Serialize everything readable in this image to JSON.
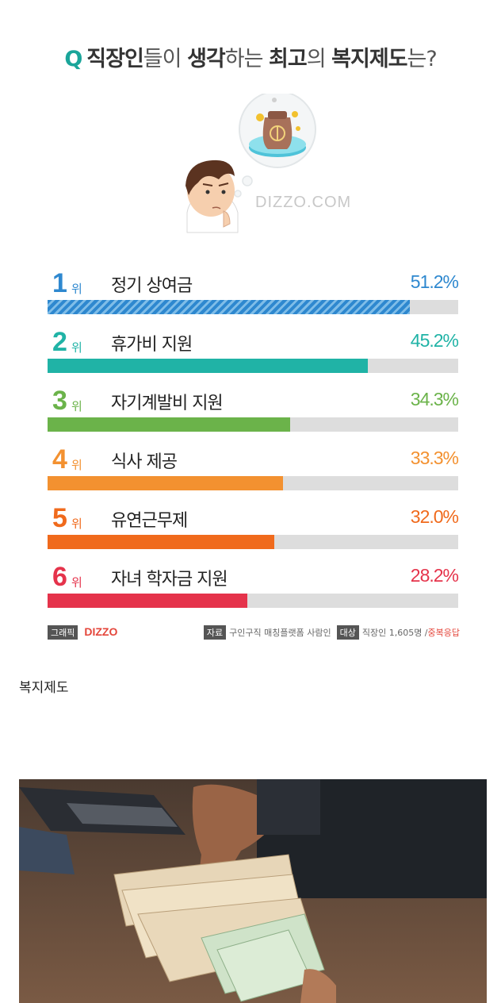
{
  "title": {
    "q": "Q",
    "part1": "직장인",
    "part2": "들이 ",
    "part3": "생각",
    "part4": "하는 ",
    "part5": "최고",
    "part6": "의 ",
    "part7": "복지제도",
    "part8": "는?"
  },
  "watermark": "DIZZO.COM",
  "rank_unit": "위",
  "chart_data": {
    "type": "bar",
    "orientation": "horizontal",
    "categories": [
      "정기 상여금",
      "휴가비 지원",
      "자기계발비 지원",
      "식사 제공",
      "유연근무제",
      "자녀 학자금 지원"
    ],
    "ranks": [
      "1",
      "2",
      "3",
      "4",
      "5",
      "6"
    ],
    "values": [
      51.2,
      45.2,
      34.3,
      33.3,
      32.0,
      28.2
    ],
    "labels": [
      "51.2%",
      "45.2%",
      "34.3%",
      "33.3%",
      "32.0%",
      "28.2%"
    ],
    "colors": [
      "#2e88cf",
      "#20b3a6",
      "#6bb34a",
      "#f39130",
      "#f06a1c",
      "#e5334b"
    ],
    "xlim": [
      0,
      58
    ]
  },
  "footer": {
    "graphic_tag": "그래픽",
    "brand": "DIZZO",
    "source_tag": "자료",
    "source_text": "구인구직 매칭플랫폼 사람인",
    "target_tag": "대상",
    "target_text": "직장인 1,605명 /",
    "target_note": "중복응답"
  },
  "caption": "복지제도"
}
